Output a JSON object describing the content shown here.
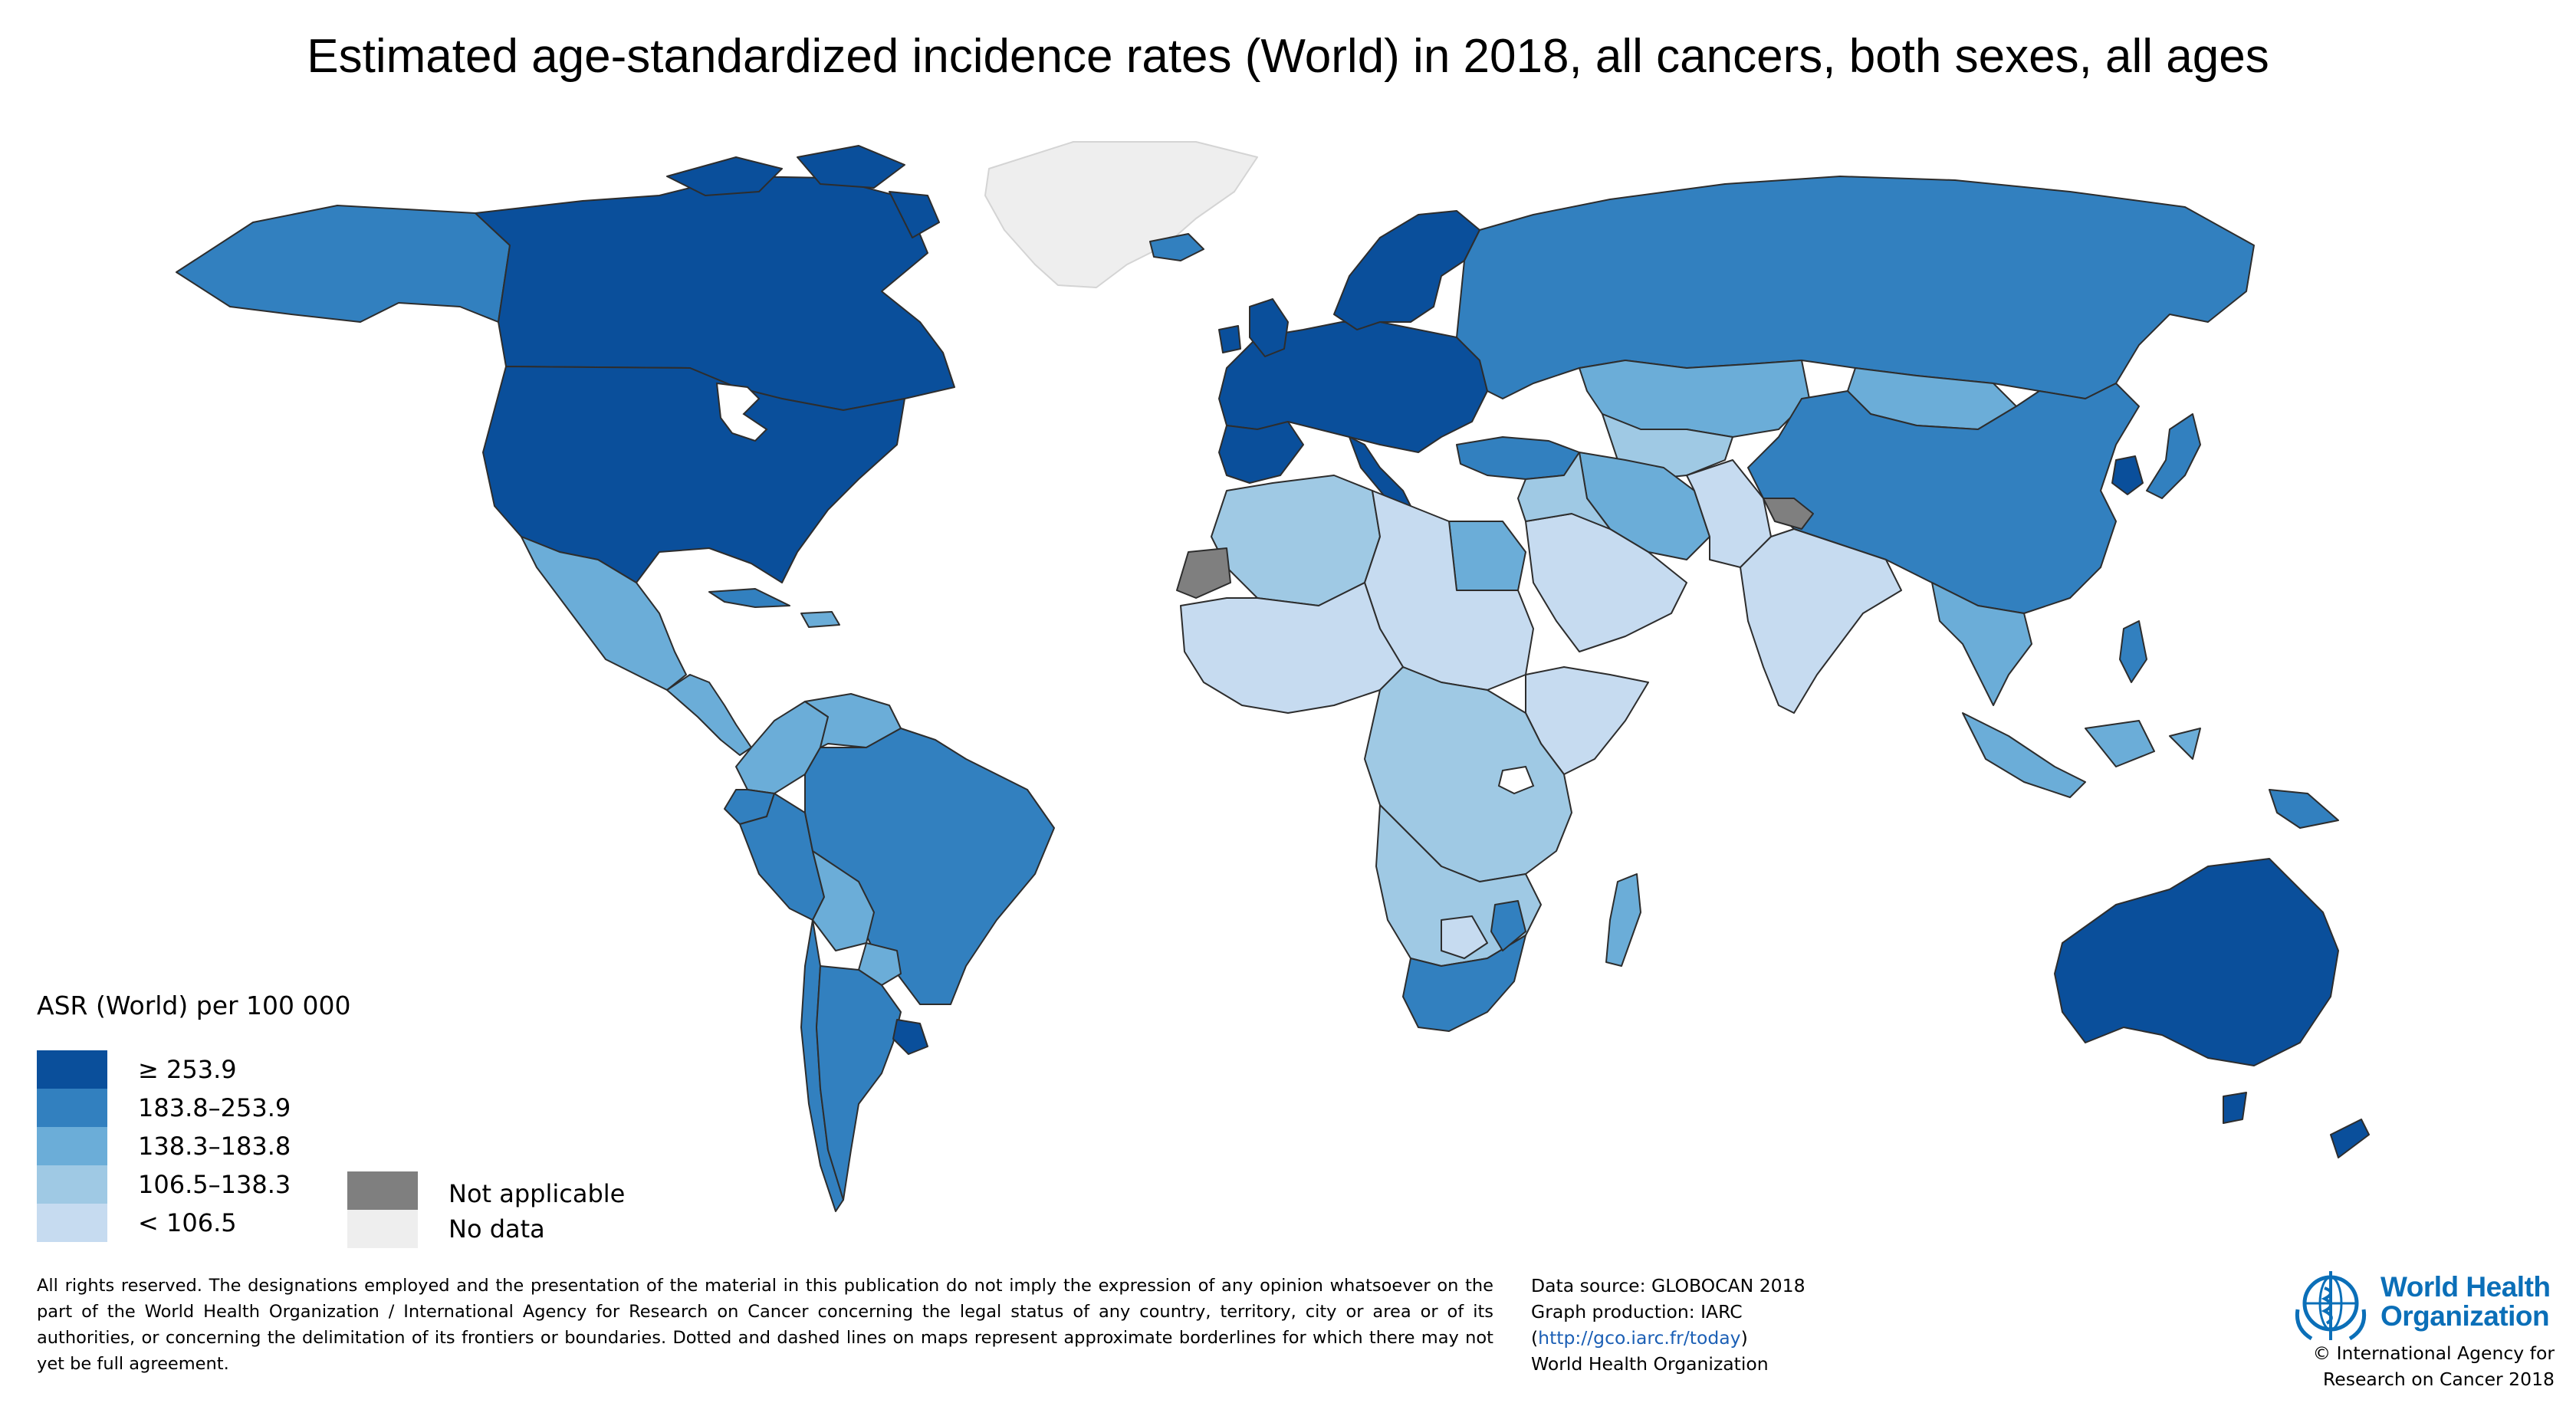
{
  "title": "Estimated age-standardized incidence rates (World) in 2018, all cancers, both sexes, all ages",
  "map": {
    "name": "World map of cancer incidence rates",
    "categories": [
      {
        "key": "c1",
        "label": "≥ 253.9",
        "color": "#0a4f9b"
      },
      {
        "key": "c2",
        "label": "183.8–253.9",
        "color": "#3280bf"
      },
      {
        "key": "c3",
        "label": "138.3–183.8",
        "color": "#6badd8"
      },
      {
        "key": "c4",
        "label": "106.5–138.3",
        "color": "#9fc9e4"
      },
      {
        "key": "c5",
        "label": "< 106.5",
        "color": "#c6dbf0"
      }
    ],
    "special": [
      {
        "key": "na",
        "label": "Not applicable",
        "color": "#7f7f7f"
      },
      {
        "key": "nd",
        "label": "No data",
        "color": "#eeeeee"
      }
    ]
  },
  "legend": {
    "title": "ASR (World) per 100 000",
    "ranges": [
      "≥ 253.9",
      "183.8–253.9",
      "138.3–183.8",
      "106.5–138.3",
      "< 106.5"
    ],
    "not_applicable": "Not applicable",
    "no_data": "No data"
  },
  "footer": {
    "disclaimer": "All rights reserved. The designations employed and the presentation of the material in this publication do not imply the expression of any opinion whatsoever on the part of the World Health Organization / International Agency for Research on Cancer concerning the legal status of any country, territory, city or area or of its authorities, or concerning the delimitation of its frontiers or boundaries. Dotted and dashed lines on maps represent approximate borderlines for which there may not yet be full agreement.",
    "data_source": "Data source: GLOBOCAN 2018",
    "graph_production": "Graph production: IARC",
    "url": "http://gco.iarc.fr/today",
    "org": "World Health Organization",
    "who_logo_text_1": "World Health",
    "who_logo_text_2": "Organization",
    "copyright_line_1": "© International Agency for",
    "copyright_line_2": "Research on Cancer 2018"
  }
}
